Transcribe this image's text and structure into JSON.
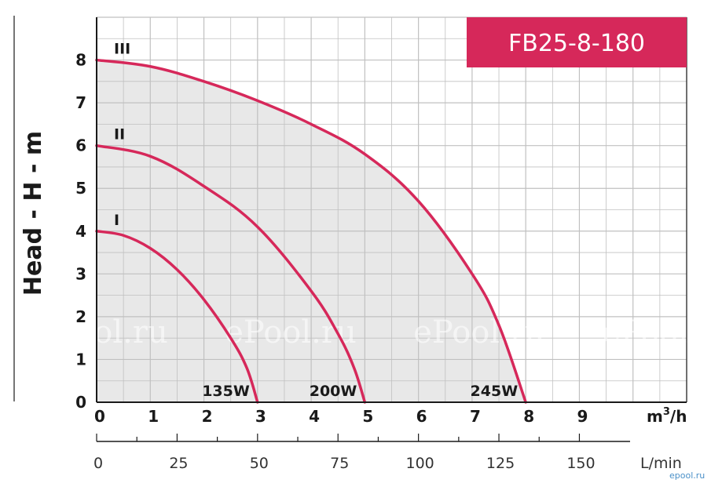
{
  "chart_data": {
    "type": "line",
    "title": "FB25-8-180",
    "ylabel": "Head - H - m",
    "xlabel": "m³/h",
    "xlabel_parts": {
      "base": "m",
      "sup": "3",
      "rest": "/h"
    },
    "x2label": "L/min",
    "xlim": [
      0,
      11
    ],
    "ylim": [
      0,
      9
    ],
    "x_ticks": [
      "0",
      "1",
      "2",
      "3",
      "4",
      "5",
      "6",
      "7",
      "8",
      "9"
    ],
    "y_ticks": [
      "0",
      "1",
      "2",
      "3",
      "4",
      "5",
      "6",
      "7",
      "8"
    ],
    "x2_ticks": [
      {
        "label": "0",
        "value": 0
      },
      {
        "label": "25",
        "value": 25
      },
      {
        "label": "50",
        "value": 50
      },
      {
        "label": "75",
        "value": 75
      },
      {
        "label": "100",
        "value": 100
      },
      {
        "label": "125",
        "value": 125
      },
      {
        "label": "150",
        "value": 150
      }
    ],
    "grid": true,
    "series": [
      {
        "name": "I",
        "power": "135W",
        "max_head": 4,
        "max_flow": 3,
        "x": [
          0,
          0.5,
          1,
          1.5,
          2,
          2.5,
          2.8,
          3
        ],
        "y": [
          4,
          3.9,
          3.6,
          3.1,
          2.4,
          1.5,
          0.8,
          0
        ]
      },
      {
        "name": "II",
        "power": "200W",
        "max_head": 6,
        "max_flow": 5,
        "x": [
          0,
          1,
          2,
          3,
          4,
          4.5,
          4.8,
          5
        ],
        "y": [
          6,
          5.75,
          5.05,
          4.1,
          2.6,
          1.6,
          0.8,
          0
        ]
      },
      {
        "name": "III",
        "power": "245W",
        "max_head": 8,
        "max_flow": 8,
        "x": [
          0,
          1,
          2,
          3,
          4,
          5,
          6,
          7,
          7.5,
          8
        ],
        "y": [
          8,
          7.85,
          7.5,
          7.05,
          6.5,
          5.8,
          4.7,
          3.0,
          1.8,
          0
        ]
      }
    ]
  },
  "watermark": "ePool.ru",
  "corner_mark": "epool.ru",
  "colors": {
    "curve": "#d6285a",
    "fill": "#e8e8e8",
    "grid": "#c0c0c0",
    "badge": "#d6285a",
    "axis": "#1a1a1a"
  }
}
